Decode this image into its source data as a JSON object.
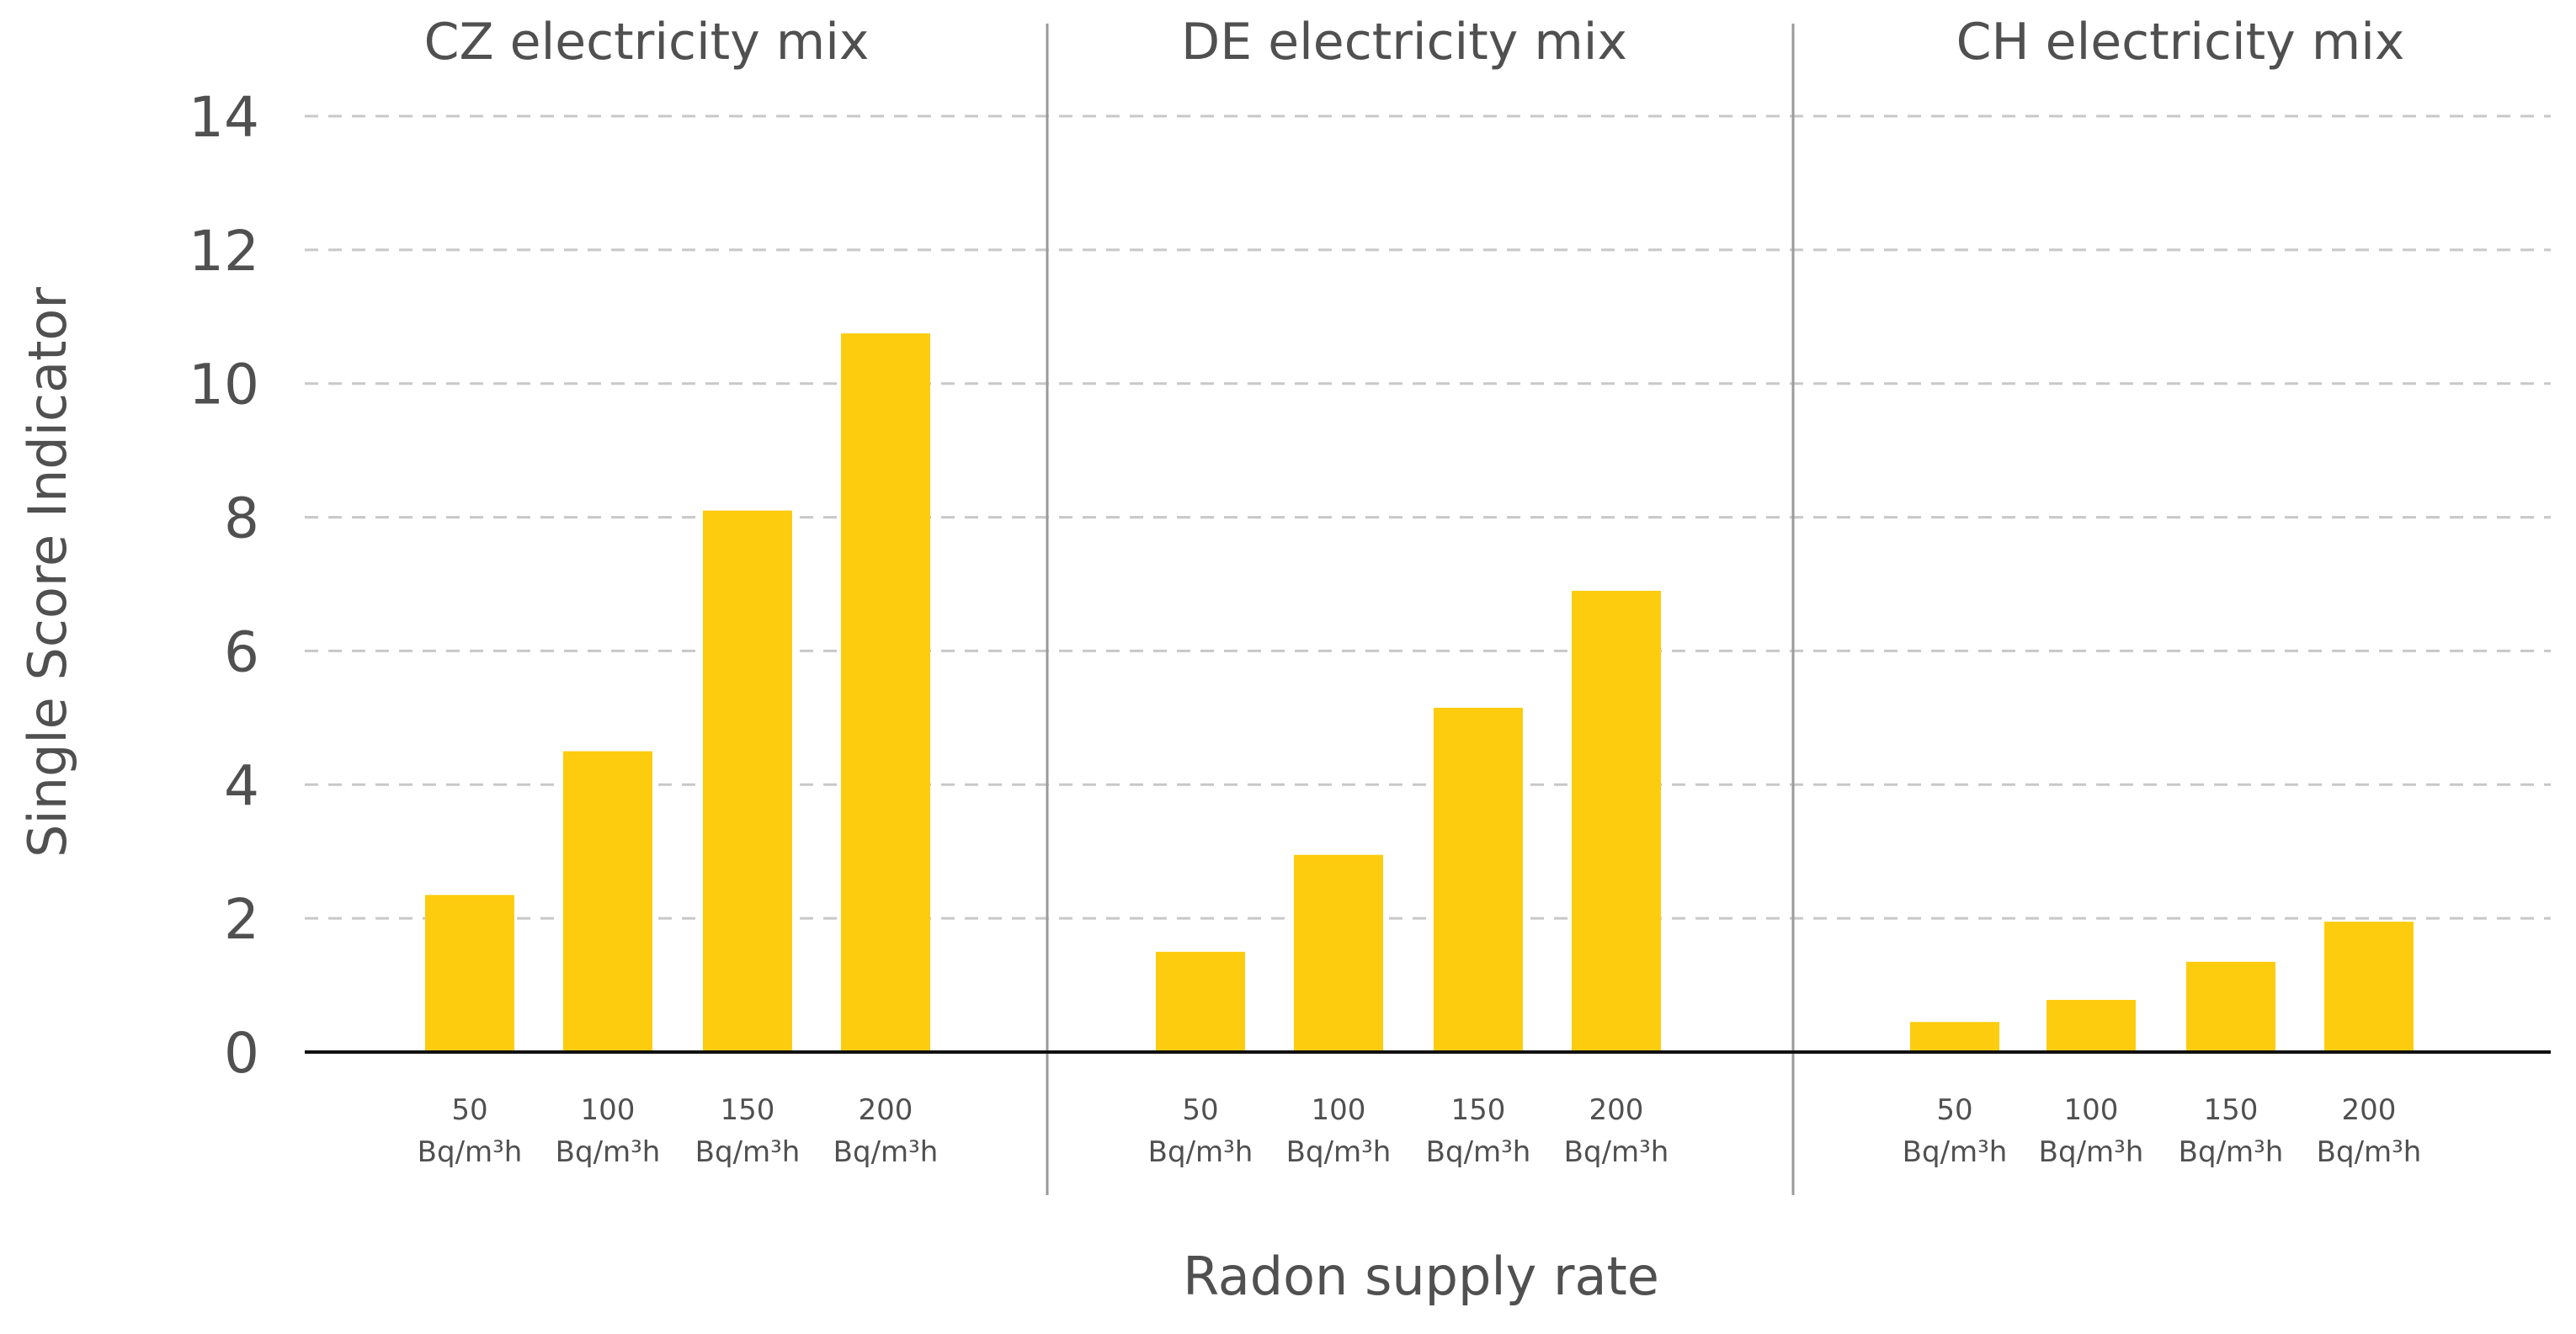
{
  "chart_data": {
    "type": "bar",
    "ylabel": "Single Score Indicator",
    "xlabel": "Radon supply rate",
    "ylim": [
      0,
      14
    ],
    "yticks": [
      "0",
      "2",
      "4",
      "6",
      "8",
      "10",
      "12",
      "14"
    ],
    "grid": true,
    "categories": [
      {
        "value": "50",
        "unit": "Bq/m³h"
      },
      {
        "value": "100",
        "unit": "Bq/m³h"
      },
      {
        "value": "150",
        "unit": "Bq/m³h"
      },
      {
        "value": "200",
        "unit": "Bq/m³h"
      }
    ],
    "panels": [
      {
        "title": "CZ electricity mix",
        "values": [
          2.35,
          4.5,
          8.1,
          10.75
        ]
      },
      {
        "title": "DE electricity mix",
        "values": [
          1.5,
          2.95,
          5.15,
          6.9
        ]
      },
      {
        "title": "CH electricity mix",
        "values": [
          0.45,
          0.78,
          1.35,
          1.95
        ]
      }
    ],
    "colors": {
      "bar": "#FECC0E"
    }
  }
}
